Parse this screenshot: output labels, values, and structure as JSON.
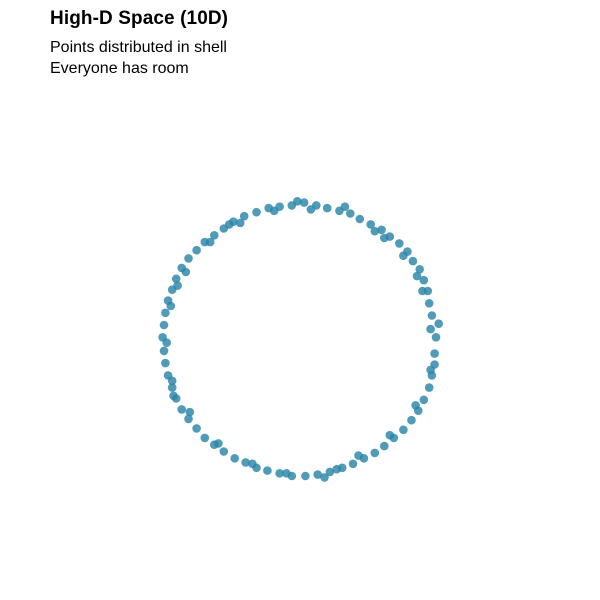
{
  "chart_data": {
    "type": "scatter",
    "title": "High-D Space (10D)",
    "subtitle_lines": [
      "Points distributed in shell",
      "Everyone has room"
    ],
    "xlabel": "",
    "ylabel": "",
    "grid": false,
    "axes_visible": false,
    "xlim": [
      -1.2,
      1.2
    ],
    "ylim": [
      -1.2,
      1.2
    ],
    "point_color": "#2a85a8",
    "series": [
      {
        "points": [
          [
            1.0,
            0.02
          ],
          [
            0.99,
            -0.1
          ],
          [
            0.97,
            0.18
          ],
          [
            0.95,
            0.27
          ],
          [
            0.94,
            0.36
          ],
          [
            0.91,
            0.44
          ],
          [
            0.88,
            0.52
          ],
          [
            0.83,
            0.58
          ],
          [
            0.79,
            0.65
          ],
          [
            0.73,
            0.71
          ],
          [
            0.66,
            0.76
          ],
          [
            0.6,
            0.81
          ],
          [
            0.52,
            0.85
          ],
          [
            0.44,
            0.89
          ],
          [
            0.37,
            0.93
          ],
          [
            0.29,
            0.95
          ],
          [
            0.2,
            0.97
          ],
          [
            0.12,
            0.99
          ],
          [
            0.03,
            1.01
          ],
          [
            -0.06,
            0.99
          ],
          [
            -0.15,
            0.98
          ],
          [
            -0.23,
            0.97
          ],
          [
            -0.32,
            0.94
          ],
          [
            -0.41,
            0.91
          ],
          [
            -0.49,
            0.87
          ],
          [
            -0.56,
            0.82
          ],
          [
            -0.63,
            0.77
          ],
          [
            -0.7,
            0.72
          ],
          [
            -0.76,
            0.66
          ],
          [
            -0.82,
            0.6
          ],
          [
            -0.87,
            0.53
          ],
          [
            -0.91,
            0.45
          ],
          [
            -0.94,
            0.37
          ],
          [
            -0.97,
            0.29
          ],
          [
            -0.99,
            0.2
          ],
          [
            -1.0,
            0.11
          ],
          [
            -1.01,
            0.02
          ],
          [
            -1.0,
            -0.08
          ],
          [
            -0.99,
            -0.17
          ],
          [
            -0.97,
            -0.26
          ],
          [
            -0.94,
            -0.35
          ],
          [
            -0.91,
            -0.43
          ],
          [
            -0.87,
            -0.51
          ],
          [
            -0.82,
            -0.58
          ],
          [
            -0.76,
            -0.65
          ],
          [
            -0.7,
            -0.72
          ],
          [
            -0.63,
            -0.77
          ],
          [
            -0.56,
            -0.82
          ],
          [
            -0.48,
            -0.87
          ],
          [
            -0.4,
            -0.9
          ],
          [
            -0.32,
            -0.94
          ],
          [
            -0.24,
            -0.96
          ],
          [
            -0.15,
            -0.98
          ],
          [
            -0.06,
            -1.0
          ],
          [
            0.04,
            -1.0
          ],
          [
            0.13,
            -0.99
          ],
          [
            0.22,
            -0.97
          ],
          [
            0.31,
            -0.94
          ],
          [
            0.39,
            -0.91
          ],
          [
            0.47,
            -0.87
          ],
          [
            0.55,
            -0.83
          ],
          [
            0.62,
            -0.78
          ],
          [
            0.69,
            -0.72
          ],
          [
            0.76,
            -0.66
          ],
          [
            0.82,
            -0.59
          ],
          [
            0.87,
            -0.52
          ],
          [
            0.91,
            -0.44
          ],
          [
            0.95,
            -0.35
          ],
          [
            0.97,
            -0.26
          ],
          [
            0.99,
            -0.18
          ],
          [
            0.96,
            0.08
          ],
          [
            0.9,
            0.36
          ],
          [
            0.76,
            0.62
          ],
          [
            0.55,
            0.8
          ],
          [
            0.33,
            0.98
          ],
          [
            0.08,
            0.96
          ],
          [
            -0.19,
            0.95
          ],
          [
            -0.44,
            0.86
          ],
          [
            -0.66,
            0.72
          ],
          [
            -0.84,
            0.5
          ],
          [
            -0.95,
            0.25
          ],
          [
            -0.98,
            -0.02
          ],
          [
            -0.94,
            -0.3
          ],
          [
            -0.81,
            -0.53
          ],
          [
            -0.6,
            -0.76
          ],
          [
            -0.35,
            -0.91
          ],
          [
            -0.1,
            -0.98
          ],
          [
            0.18,
            -1.01
          ],
          [
            0.43,
            -0.85
          ],
          [
            0.66,
            -0.7
          ],
          [
            0.85,
            -0.48
          ],
          [
            0.96,
            -0.22
          ],
          [
            1.02,
            0.12
          ],
          [
            0.86,
            0.47
          ],
          [
            0.62,
            0.75
          ],
          [
            -0.02,
            1.02
          ],
          [
            -0.52,
            0.85
          ],
          [
            -0.9,
            0.4
          ],
          [
            -0.93,
            -0.41
          ],
          [
            0.27,
            -0.95
          ]
        ]
      }
    ]
  }
}
